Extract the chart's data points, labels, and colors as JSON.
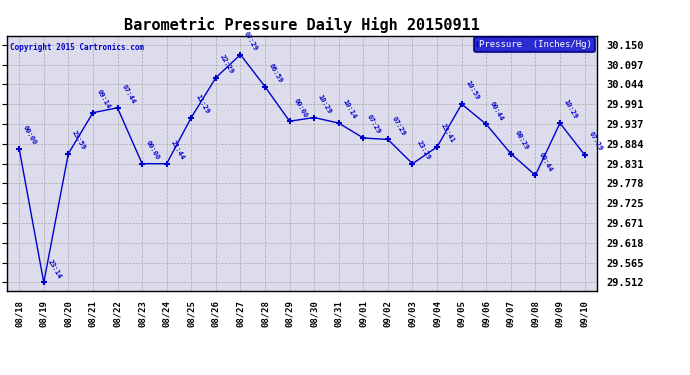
{
  "title": "Barometric Pressure Daily High 20150911",
  "copyright": "Copyright 2015 Cartronics.com",
  "legend_label": "Pressure  (Inches/Hg)",
  "background_color": "#ffffff",
  "plot_bg_color": "#dcdcec",
  "line_color": "#0000cc",
  "text_color": "#0000cc",
  "yticks": [
    29.512,
    29.565,
    29.618,
    29.671,
    29.725,
    29.778,
    29.831,
    29.884,
    29.937,
    29.991,
    30.044,
    30.097,
    30.15
  ],
  "ylim": [
    29.49,
    30.175
  ],
  "data": [
    {
      "date": "08/18",
      "value": 29.871,
      "time": "00:00"
    },
    {
      "date": "08/19",
      "value": 29.512,
      "time": "23:14"
    },
    {
      "date": "08/20",
      "value": 29.858,
      "time": "23:59"
    },
    {
      "date": "08/21",
      "value": 29.968,
      "time": "09:14"
    },
    {
      "date": "08/22",
      "value": 29.981,
      "time": "07:44"
    },
    {
      "date": "08/23",
      "value": 29.831,
      "time": "00:00"
    },
    {
      "date": "08/24",
      "value": 29.831,
      "time": "21:44"
    },
    {
      "date": "08/25",
      "value": 29.955,
      "time": "11:29"
    },
    {
      "date": "08/26",
      "value": 30.062,
      "time": "22:29"
    },
    {
      "date": "08/27",
      "value": 30.124,
      "time": "07:29"
    },
    {
      "date": "08/28",
      "value": 30.038,
      "time": "06:59"
    },
    {
      "date": "08/29",
      "value": 29.945,
      "time": "00:00"
    },
    {
      "date": "08/30",
      "value": 29.955,
      "time": "10:29"
    },
    {
      "date": "08/31",
      "value": 29.94,
      "time": "10:14"
    },
    {
      "date": "09/01",
      "value": 29.9,
      "time": "07:29"
    },
    {
      "date": "09/02",
      "value": 29.896,
      "time": "07:29"
    },
    {
      "date": "09/03",
      "value": 29.831,
      "time": "23:29"
    },
    {
      "date": "09/04",
      "value": 29.876,
      "time": "23:41"
    },
    {
      "date": "09/05",
      "value": 29.991,
      "time": "10:59"
    },
    {
      "date": "09/06",
      "value": 29.937,
      "time": "00:44"
    },
    {
      "date": "09/07",
      "value": 29.858,
      "time": "08:29"
    },
    {
      "date": "09/08",
      "value": 29.8,
      "time": "00:44"
    },
    {
      "date": "09/09",
      "value": 29.94,
      "time": "10:29"
    },
    {
      "date": "09/10",
      "value": 29.855,
      "time": "07:29"
    }
  ]
}
